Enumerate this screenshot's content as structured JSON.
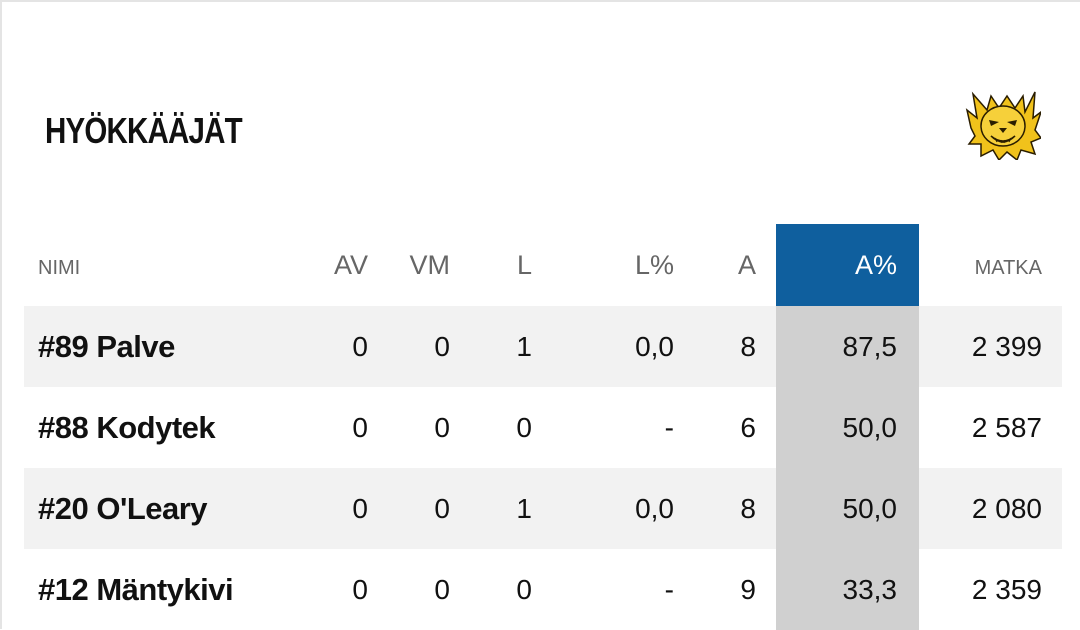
{
  "section": {
    "title": "HYÖKKÄÄJÄT",
    "team_logo_icon": "lynx-logo-icon",
    "accent_color": "#0f5f9e"
  },
  "table": {
    "headers": {
      "name": "NIMI",
      "av": "AV",
      "vm": "VM",
      "l": "L",
      "lp": "L%",
      "a": "A",
      "ap": "A%",
      "km": "MATKA"
    },
    "rows": [
      {
        "name": "#89 Palve",
        "av": "0",
        "vm": "0",
        "l": "1",
        "lp": "0,0",
        "a": "8",
        "ap": "87,5",
        "km": "2 399"
      },
      {
        "name": "#88 Kodytek",
        "av": "0",
        "vm": "0",
        "l": "0",
        "lp": "-",
        "a": "6",
        "ap": "50,0",
        "km": "2 587"
      },
      {
        "name": "#20 O'Leary",
        "av": "0",
        "vm": "0",
        "l": "1",
        "lp": "0,0",
        "a": "8",
        "ap": "50,0",
        "km": "2 080"
      },
      {
        "name": "#12 Mäntykivi",
        "av": "0",
        "vm": "0",
        "l": "0",
        "lp": "-",
        "a": "9",
        "ap": "33,3",
        "km": "2 359"
      }
    ]
  }
}
